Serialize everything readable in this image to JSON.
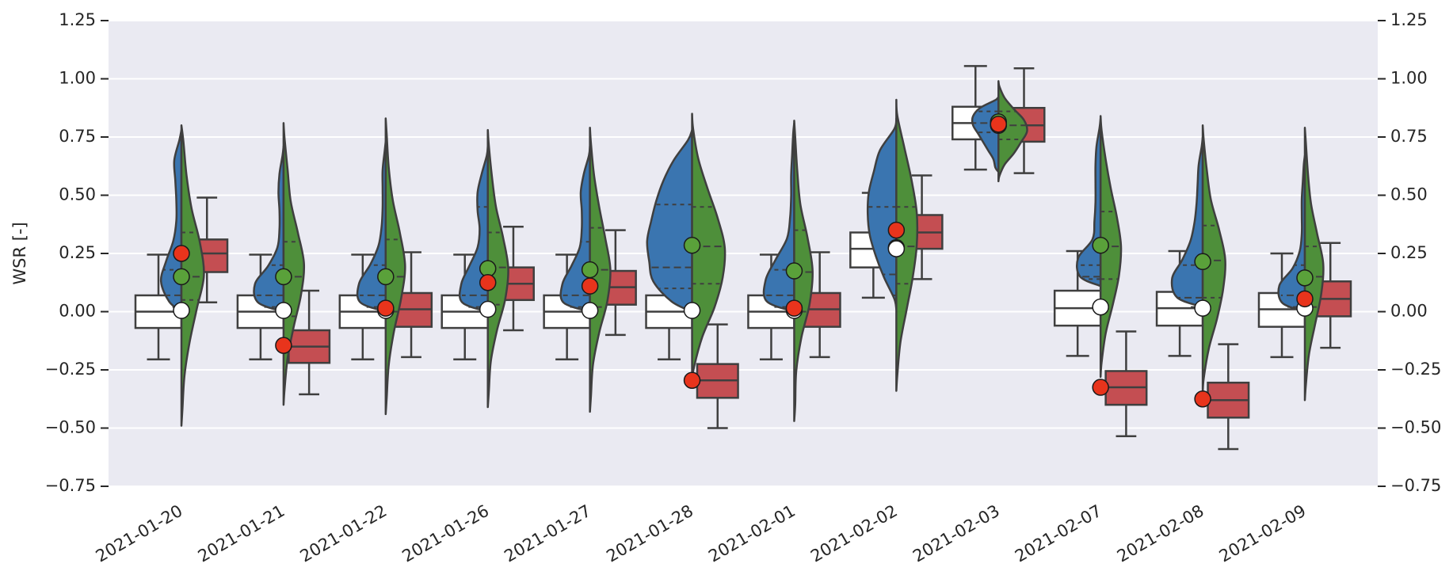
{
  "chart_data": {
    "type": "box_violin",
    "ylabel": "WSR [-]",
    "categories": [
      "2021-01-20",
      "2021-01-21",
      "2021-01-22",
      "2021-01-26",
      "2021-01-27",
      "2021-01-28",
      "2021-02-01",
      "2021-02-02",
      "2021-02-03",
      "2021-02-07",
      "2021-02-08",
      "2021-02-09"
    ],
    "ylim": [
      -0.75,
      1.25
    ],
    "yticks": [
      1.25,
      {
        "value": 1.0,
        "label": "1.00"
      },
      0.75,
      {
        "value": 0.5,
        "label": "0.50"
      },
      {
        "value": 0.25,
        "label": "0.25"
      },
      {
        "value": 0.0,
        "label": "0.00"
      },
      {
        "value": -0.25,
        "label": "−0.25"
      },
      {
        "value": -0.5,
        "label": "−0.50"
      },
      {
        "value": -0.75,
        "label": "−0.75"
      }
    ],
    "y2lim": [
      -0.75,
      1.25
    ],
    "y2ticks": [
      1.25,
      {
        "value": 1.0,
        "label": "1.00"
      },
      0.75,
      {
        "value": 0.5,
        "label": "0.50"
      },
      {
        "value": 0.25,
        "label": "0.25"
      },
      {
        "value": 0.0,
        "label": "0.00"
      },
      {
        "value": -0.25,
        "label": "−0.25"
      },
      {
        "value": -0.5,
        "label": "−0.50"
      },
      {
        "value": -0.75,
        "label": "−0.75"
      }
    ],
    "grid": true,
    "background": "#eaeaf2",
    "series": [
      {
        "kind": "box",
        "position": "left",
        "color": "#ffffff",
        "q1": [
          -0.07,
          -0.07,
          -0.07,
          -0.07,
          -0.07,
          -0.07,
          -0.07,
          0.19,
          0.74,
          -0.06,
          -0.06,
          -0.065
        ],
        "median": [
          0,
          0,
          0,
          0,
          0,
          0,
          0,
          0.27,
          0.81,
          0.015,
          0.015,
          0.01
        ],
        "q3": [
          0.07,
          0.07,
          0.07,
          0.07,
          0.07,
          0.07,
          0.07,
          0.34,
          0.88,
          0.09,
          0.085,
          0.08
        ],
        "whislo": [
          -0.205,
          -0.205,
          -0.205,
          -0.205,
          -0.205,
          -0.205,
          -0.205,
          0.06,
          0.61,
          -0.19,
          -0.19,
          -0.195
        ],
        "whishi": [
          0.245,
          0.245,
          0.245,
          0.245,
          0.245,
          0.245,
          0.245,
          0.51,
          1.055,
          0.26,
          0.26,
          0.25
        ]
      },
      {
        "kind": "box",
        "position": "right",
        "color": "#c44e52",
        "q1": [
          0.17,
          -0.22,
          -0.065,
          0.05,
          0.03,
          -0.37,
          -0.065,
          0.27,
          0.73,
          -0.4,
          -0.455,
          -0.02
        ],
        "median": [
          0.25,
          -0.15,
          0.01,
          0.12,
          0.105,
          -0.295,
          0.01,
          0.34,
          0.8,
          -0.325,
          -0.38,
          0.055
        ],
        "q3": [
          0.31,
          -0.08,
          0.08,
          0.19,
          0.175,
          -0.225,
          0.08,
          0.415,
          0.875,
          -0.255,
          -0.305,
          0.13
        ],
        "whislo": [
          0.04,
          -0.355,
          -0.195,
          -0.08,
          -0.1,
          -0.5,
          -0.195,
          0.14,
          0.595,
          -0.535,
          -0.59,
          -0.155
        ],
        "whishi": [
          0.49,
          0.09,
          0.255,
          0.365,
          0.35,
          -0.055,
          0.255,
          0.585,
          1.045,
          -0.085,
          -0.14,
          0.295
        ]
      },
      {
        "kind": "violin",
        "side": "left",
        "color": "#3a75b0",
        "lo": [
          0.0,
          0.0,
          0.0,
          0.0,
          0.0,
          0.0,
          0.0,
          0.01,
          0.6,
          0.11,
          0.02,
          0.0
        ],
        "hi": [
          0.78,
          0.71,
          0.73,
          0.71,
          0.71,
          0.78,
          0.81,
          0.83,
          0.93,
          0.83,
          0.75,
          0.67
        ],
        "q1": [
          0.02,
          0.02,
          0.02,
          0.02,
          0.02,
          0.1,
          0.02,
          0.07,
          0.77,
          0.14,
          0.02,
          0.02
        ],
        "median": [
          0.07,
          0.07,
          0.07,
          0.07,
          0.07,
          0.19,
          0.07,
          0.16,
          0.81,
          0.15,
          0.06,
          0.07
        ],
        "q3": [
          0.18,
          0.2,
          0.2,
          0.45,
          0.3,
          0.46,
          0.18,
          0.45,
          0.86,
          0.2,
          0.2,
          0.2
        ],
        "density": [
          [
            0.12,
            0.2,
            0.15,
            0.08,
            0.05,
            0.05,
            0.06,
            0.07,
            0.02
          ],
          [
            0.25,
            0.28,
            0.15,
            0.06,
            0.04,
            0.04,
            0.05,
            0.04,
            0.01
          ],
          [
            0.25,
            0.26,
            0.15,
            0.07,
            0.04,
            0.03,
            0.03,
            0.03,
            0.01
          ],
          [
            0.25,
            0.26,
            0.18,
            0.1,
            0.08,
            0.1,
            0.1,
            0.06,
            0.01
          ],
          [
            0.26,
            0.27,
            0.18,
            0.1,
            0.08,
            0.08,
            0.09,
            0.06,
            0.01
          ],
          [
            0.2,
            0.38,
            0.42,
            0.44,
            0.4,
            0.35,
            0.28,
            0.18,
            0.04
          ],
          [
            0.27,
            0.28,
            0.18,
            0.07,
            0.04,
            0.03,
            0.03,
            0.02,
            0.01
          ],
          [
            0.02,
            0.12,
            0.2,
            0.26,
            0.28,
            0.27,
            0.22,
            0.16,
            0.02
          ],
          [
            0.03,
            0.05,
            0.1,
            0.15,
            0.2,
            0.25,
            0.25,
            0.18,
            0.02
          ],
          [
            0.2,
            0.22,
            0.08,
            0.06,
            0.05,
            0.05,
            0.05,
            0.04,
            0.01
          ],
          [
            0.25,
            0.3,
            0.2,
            0.12,
            0.08,
            0.06,
            0.05,
            0.04,
            0.01
          ],
          [
            0.22,
            0.25,
            0.12,
            0.05,
            0.03,
            0.03,
            0.03,
            0.02,
            0.01
          ]
        ]
      },
      {
        "kind": "violin",
        "side": "right",
        "color": "#4e8f3a",
        "lo": [
          -0.49,
          -0.4,
          -0.44,
          -0.41,
          -0.43,
          -0.3,
          -0.47,
          -0.34,
          0.56,
          -0.28,
          -0.35,
          -0.38
        ],
        "hi": [
          0.8,
          0.81,
          0.83,
          0.78,
          0.79,
          0.85,
          0.82,
          0.91,
          0.99,
          0.84,
          0.8,
          0.79
        ],
        "q1": [
          0.05,
          -0.02,
          0.0,
          0.03,
          0.02,
          0.12,
          0.0,
          0.12,
          0.74,
          0.14,
          0.06,
          0.02
        ],
        "median": [
          0.15,
          0.15,
          0.15,
          0.19,
          0.18,
          0.28,
          0.17,
          0.28,
          0.8,
          0.28,
          0.22,
          0.15
        ],
        "q3": [
          0.34,
          0.3,
          0.31,
          0.34,
          0.36,
          0.45,
          0.35,
          0.45,
          0.86,
          0.43,
          0.37,
          0.28
        ],
        "density": [
          [
            0.01,
            0.03,
            0.08,
            0.15,
            0.22,
            0.18,
            0.1,
            0.05,
            0.02
          ],
          [
            0.01,
            0.04,
            0.1,
            0.17,
            0.2,
            0.14,
            0.07,
            0.04,
            0.01
          ],
          [
            0.01,
            0.03,
            0.08,
            0.15,
            0.19,
            0.14,
            0.07,
            0.03,
            0.01
          ],
          [
            0.01,
            0.03,
            0.09,
            0.17,
            0.2,
            0.15,
            0.08,
            0.04,
            0.01
          ],
          [
            0.01,
            0.03,
            0.09,
            0.17,
            0.2,
            0.15,
            0.09,
            0.04,
            0.01
          ],
          [
            0.02,
            0.1,
            0.22,
            0.3,
            0.32,
            0.25,
            0.15,
            0.06,
            0.01
          ],
          [
            0.01,
            0.02,
            0.07,
            0.15,
            0.18,
            0.13,
            0.06,
            0.03,
            0.01
          ],
          [
            0.01,
            0.04,
            0.1,
            0.16,
            0.2,
            0.2,
            0.15,
            0.08,
            0.01
          ],
          [
            0.01,
            0.06,
            0.15,
            0.22,
            0.28,
            0.25,
            0.15,
            0.06,
            0.01
          ],
          [
            0.01,
            0.05,
            0.12,
            0.18,
            0.2,
            0.16,
            0.1,
            0.05,
            0.01
          ],
          [
            0.01,
            0.06,
            0.14,
            0.2,
            0.22,
            0.16,
            0.08,
            0.04,
            0.01
          ],
          [
            0.01,
            0.04,
            0.1,
            0.16,
            0.18,
            0.12,
            0.06,
            0.03,
            0.01
          ]
        ]
      },
      {
        "kind": "dot",
        "color": "#5aa13a",
        "values": [
          0.15,
          0.15,
          0.15,
          0.185,
          0.18,
          0.285,
          0.175,
          0.275,
          0.815,
          0.285,
          0.215,
          0.145
        ]
      },
      {
        "kind": "dot",
        "color": "#ffffff",
        "values": [
          0.005,
          0.005,
          0.005,
          0.01,
          0.005,
          0.005,
          0.005,
          0.27,
          0.8,
          0.02,
          0.015,
          0.015
        ]
      },
      {
        "kind": "dot",
        "color": "#e8341c",
        "values": [
          0.25,
          -0.145,
          0.015,
          0.125,
          0.11,
          -0.295,
          0.015,
          0.35,
          0.805,
          -0.325,
          -0.375,
          0.055
        ]
      }
    ]
  }
}
